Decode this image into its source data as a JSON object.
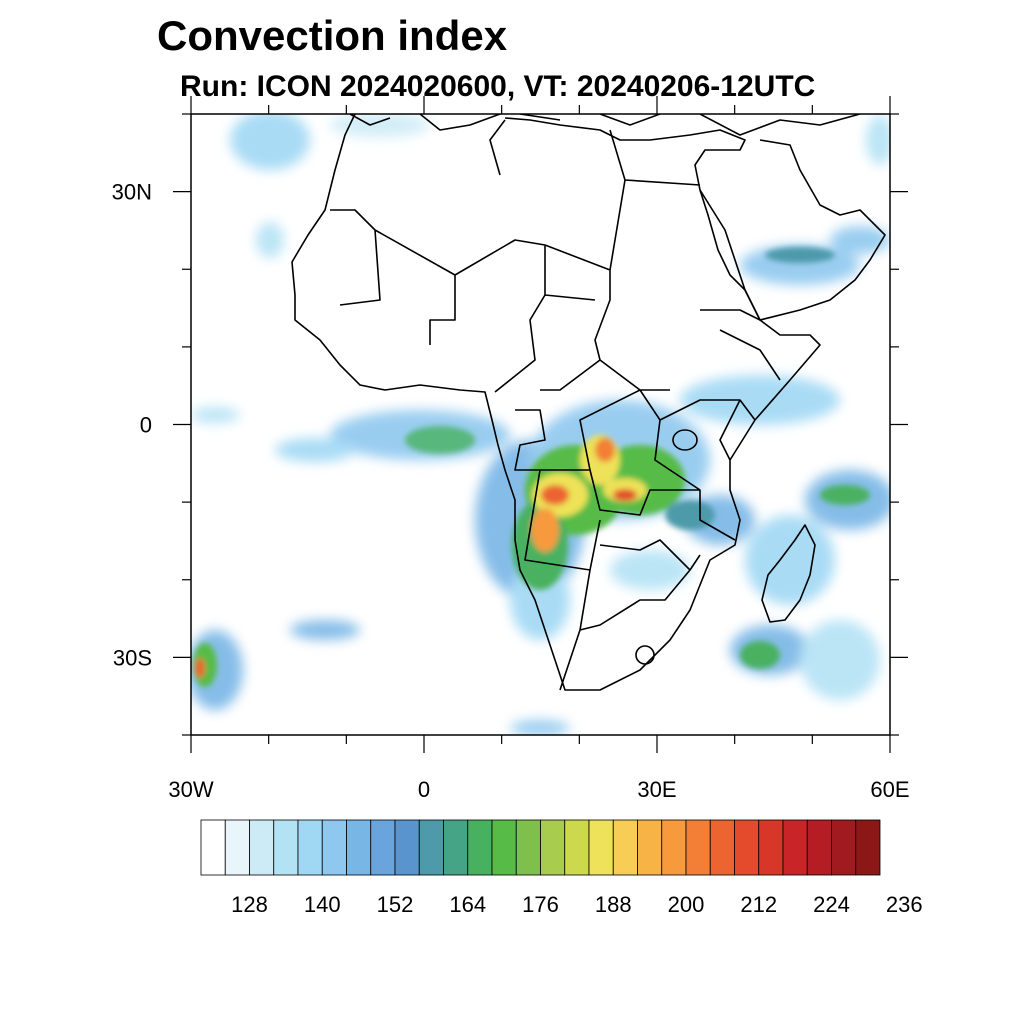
{
  "title": "Convection index",
  "subtitle": "Run: ICON 2024020600,  VT: 20240206-12UTC",
  "axes": {
    "x_ticks": [
      {
        "value": -30,
        "label": "30W"
      },
      {
        "value": 0,
        "label": "0"
      },
      {
        "value": 30,
        "label": "30E"
      },
      {
        "value": 60,
        "label": "60E"
      }
    ],
    "y_ticks": [
      {
        "value": 30,
        "label": "30N"
      },
      {
        "value": 0,
        "label": "0"
      },
      {
        "value": -30,
        "label": "30S"
      }
    ],
    "lon_range": [
      -30,
      60
    ],
    "lat_range": [
      -40,
      40
    ]
  },
  "colorbar": {
    "colors": [
      "#ffffff",
      "#e8f6fc",
      "#cdebf7",
      "#b4e2f5",
      "#a0d8f4",
      "#8ec8ef",
      "#78b6e6",
      "#6aa4dc",
      "#5a94cf",
      "#4e9aaa",
      "#45a486",
      "#48b160",
      "#56bb47",
      "#7fc04c",
      "#a8cc4d",
      "#ccd94d",
      "#ede259",
      "#f7cd56",
      "#f8b347",
      "#f79a3c",
      "#f27f35",
      "#ec6430",
      "#e34b2c",
      "#d83629",
      "#c92427",
      "#b61c24",
      "#a11a1f",
      "#8c1717"
    ],
    "labels": [
      "128",
      "140",
      "152",
      "164",
      "176",
      "188",
      "200",
      "212",
      "224",
      "236"
    ]
  },
  "chart_data": {
    "type": "heatmap",
    "variable": "Convection index",
    "colorbar_labels": [
      128,
      140,
      152,
      164,
      176,
      188,
      200,
      212,
      224,
      236
    ],
    "lon_range": [
      -30,
      60
    ],
    "lat_range": [
      -40,
      40
    ]
  }
}
